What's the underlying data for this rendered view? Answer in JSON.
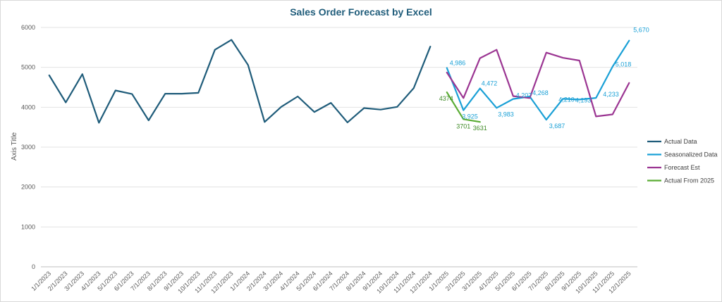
{
  "chart_data": {
    "type": "line",
    "title": "Sales Order Forecast by Excel",
    "xlabel": "",
    "ylabel": "Axis Title",
    "ylim": [
      0,
      6000
    ],
    "yticks": [
      0,
      1000,
      2000,
      3000,
      4000,
      5000,
      6000
    ],
    "grid": true,
    "legend_position": "right",
    "categories": [
      "1/1/2023",
      "2/1/2023",
      "3/1/2023",
      "4/1/2023",
      "5/1/2023",
      "6/1/2023",
      "7/1/2023",
      "8/1/2023",
      "9/1/2023",
      "10/1/2023",
      "11/1/2023",
      "12/1/2023",
      "1/1/2024",
      "2/1/2024",
      "3/1/2024",
      "4/1/2024",
      "5/1/2024",
      "6/1/2024",
      "7/1/2024",
      "8/1/2024",
      "9/1/2024",
      "10/1/2024",
      "11/1/2024",
      "12/1/2024",
      "1/1/2025",
      "2/1/2025",
      "3/1/2025",
      "4/1/2025",
      "5/1/2025",
      "6/1/2025",
      "7/1/2025",
      "8/1/2025",
      "9/1/2025",
      "10/1/2025",
      "11/1/2025",
      "12/1/2025"
    ],
    "series": [
      {
        "name": "Actual Data",
        "color": "#1f5c7a",
        "values": [
          4800,
          4120,
          4830,
          3610,
          4420,
          4330,
          3670,
          4340,
          4340,
          4360,
          5440,
          5690,
          5060,
          3630,
          4010,
          4270,
          3880,
          4110,
          3620,
          3980,
          3940,
          4010,
          4480,
          5520,
          null,
          null,
          null,
          null,
          null,
          null,
          null,
          null,
          null,
          null,
          null,
          null
        ]
      },
      {
        "name": "Seasonalized Data",
        "color": "#1aa0d6",
        "values": [
          null,
          null,
          null,
          null,
          null,
          null,
          null,
          null,
          null,
          null,
          null,
          null,
          null,
          null,
          null,
          null,
          null,
          null,
          null,
          null,
          null,
          null,
          null,
          null,
          4986,
          3925,
          4472,
          3983,
          4207,
          4268,
          3687,
          4210,
          4193,
          4233,
          5018,
          5670
        ],
        "labels": [
          "4,986",
          "3,925",
          "4,472",
          "3,983",
          "4,207",
          "4,268",
          "3,687",
          "4,210",
          "4,193",
          "4,233",
          "5,018",
          "5,670"
        ]
      },
      {
        "name": "Forecast Est",
        "color": "#9b3592",
        "values": [
          null,
          null,
          null,
          null,
          null,
          null,
          null,
          null,
          null,
          null,
          null,
          null,
          null,
          null,
          null,
          null,
          null,
          null,
          null,
          null,
          null,
          null,
          null,
          null,
          4870,
          4230,
          5230,
          5440,
          4280,
          4230,
          5370,
          5240,
          5170,
          3770,
          3820,
          4610
        ]
      },
      {
        "name": "Actual From 2025",
        "color": "#5aac34",
        "values": [
          null,
          null,
          null,
          null,
          null,
          null,
          null,
          null,
          null,
          null,
          null,
          null,
          null,
          null,
          null,
          null,
          null,
          null,
          null,
          null,
          null,
          null,
          null,
          null,
          4374,
          3701,
          3631,
          null,
          null,
          null,
          null,
          null,
          null,
          null,
          null,
          null
        ],
        "labels": [
          "4374",
          "3701",
          "3631"
        ]
      }
    ]
  }
}
